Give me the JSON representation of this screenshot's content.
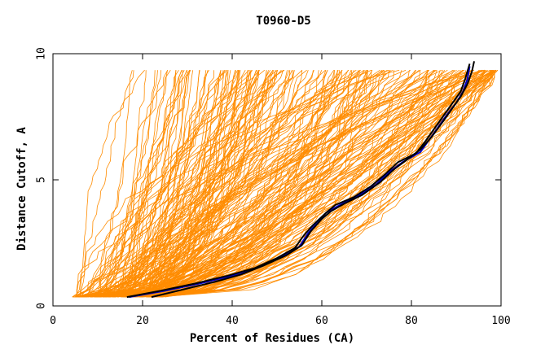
{
  "chart_data": {
    "type": "line",
    "title": "T0960-D5",
    "xlabel": "Percent of Residues (CA)",
    "ylabel": "Distance Cutoff, A",
    "xlim": [
      0,
      100
    ],
    "ylim": [
      0,
      10
    ],
    "x_ticks": [
      0,
      20,
      40,
      60,
      80,
      100
    ],
    "y_ticks": [
      0,
      5,
      10
    ],
    "grid": false,
    "legend": "none",
    "colors": {
      "models": "#ff8c00",
      "highlight_blue": "#0000cc",
      "highlight_black": "#000000"
    },
    "highlight_series": [
      {
        "color": "#0000cc",
        "points": [
          [
            17,
            0.35
          ],
          [
            25,
            0.6
          ],
          [
            33,
            0.9
          ],
          [
            40,
            1.2
          ],
          [
            46,
            1.55
          ],
          [
            51,
            1.95
          ],
          [
            55,
            2.35
          ],
          [
            57,
            2.9
          ],
          [
            59,
            3.3
          ],
          [
            61,
            3.7
          ],
          [
            64,
            4.0
          ],
          [
            68,
            4.35
          ],
          [
            72,
            4.8
          ],
          [
            75,
            5.3
          ],
          [
            78,
            5.7
          ],
          [
            82,
            6.1
          ],
          [
            84,
            6.6
          ],
          [
            86,
            7.1
          ],
          [
            88,
            7.6
          ],
          [
            90,
            8.05
          ],
          [
            91.5,
            8.5
          ],
          [
            92.5,
            9.0
          ],
          [
            93,
            9.5
          ]
        ]
      },
      {
        "color": "#000000",
        "points": [
          [
            16.5,
            0.35
          ],
          [
            24,
            0.6
          ],
          [
            32,
            0.9
          ],
          [
            39,
            1.2
          ],
          [
            45,
            1.5
          ],
          [
            50,
            1.9
          ],
          [
            54,
            2.3
          ],
          [
            56,
            2.8
          ],
          [
            58,
            3.2
          ],
          [
            61,
            3.7
          ],
          [
            63,
            4.0
          ],
          [
            67,
            4.3
          ],
          [
            71,
            4.75
          ],
          [
            74,
            5.2
          ],
          [
            77,
            5.7
          ],
          [
            81,
            6.05
          ],
          [
            83,
            6.5
          ],
          [
            85,
            7.0
          ],
          [
            87,
            7.5
          ],
          [
            89,
            8.0
          ],
          [
            91,
            8.5
          ],
          [
            92,
            9.0
          ],
          [
            93,
            9.6
          ]
        ]
      },
      {
        "color": "#000000",
        "points": [
          [
            22,
            0.35
          ],
          [
            29,
            0.65
          ],
          [
            36,
            0.95
          ],
          [
            42,
            1.25
          ],
          [
            47,
            1.6
          ],
          [
            52,
            2.0
          ],
          [
            55.5,
            2.4
          ],
          [
            57.5,
            2.95
          ],
          [
            60,
            3.45
          ],
          [
            62,
            3.75
          ],
          [
            65,
            4.05
          ],
          [
            69,
            4.4
          ],
          [
            73,
            4.9
          ],
          [
            76,
            5.4
          ],
          [
            79,
            5.8
          ],
          [
            82,
            6.2
          ],
          [
            84.5,
            6.7
          ],
          [
            87,
            7.3
          ],
          [
            89,
            7.8
          ],
          [
            91,
            8.3
          ],
          [
            92.5,
            8.8
          ],
          [
            93.5,
            9.3
          ],
          [
            94,
            9.7
          ]
        ]
      }
    ]
  }
}
